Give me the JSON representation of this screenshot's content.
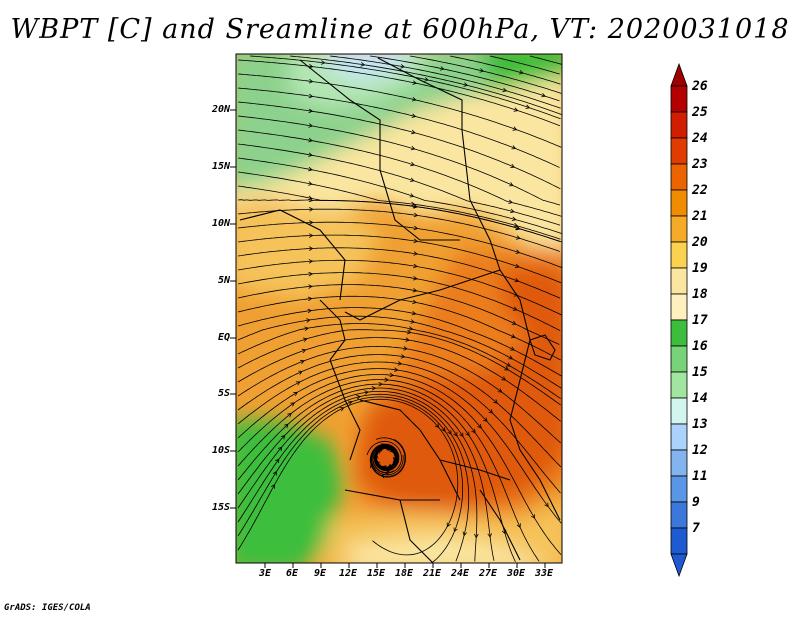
{
  "title": "WBPT [C] and Sreamline at 600hPa, VT: 2020031018",
  "footer": "GrADS: IGES/COLA",
  "lat_labels": [
    "20N",
    "15N",
    "10N",
    "5N",
    "EQ",
    "5S",
    "10S",
    "15S"
  ],
  "lon_labels": [
    "3E",
    "6E",
    "9E",
    "12E",
    "15E",
    "18E",
    "21E",
    "24E",
    "27E",
    "30E",
    "33E"
  ],
  "colorbar": {
    "levels": [
      "26",
      "25",
      "24",
      "23",
      "22",
      "21",
      "20",
      "19",
      "18",
      "17",
      "16",
      "15",
      "14",
      "13",
      "12",
      "11",
      "9",
      "7"
    ],
    "colors": [
      "#b40000",
      "#d21e00",
      "#e03c00",
      "#eb6400",
      "#f08c00",
      "#f5aa28",
      "#fad250",
      "#fae6a0",
      "#fff0be",
      "#3cbe3c",
      "#78d278",
      "#a0e6a0",
      "#d2f5f0",
      "#aad2fa",
      "#82b4f0",
      "#5a96e6",
      "#3c78dc",
      "#1e5ad2"
    ],
    "top_arrow_color": "#a00000",
    "bottom_arrow_color": "#1e5ad2"
  },
  "map_colors": {
    "deep_orange": "#e05a10",
    "orange": "#eb7d1e",
    "light_orange": "#f0a032",
    "tan": "#f5c35a",
    "cream": "#fae6a0",
    "green": "#3cbe3c",
    "light_green": "#8cd28c",
    "pale_green": "#b4e6b4",
    "light_blue": "#c8e6fa"
  }
}
